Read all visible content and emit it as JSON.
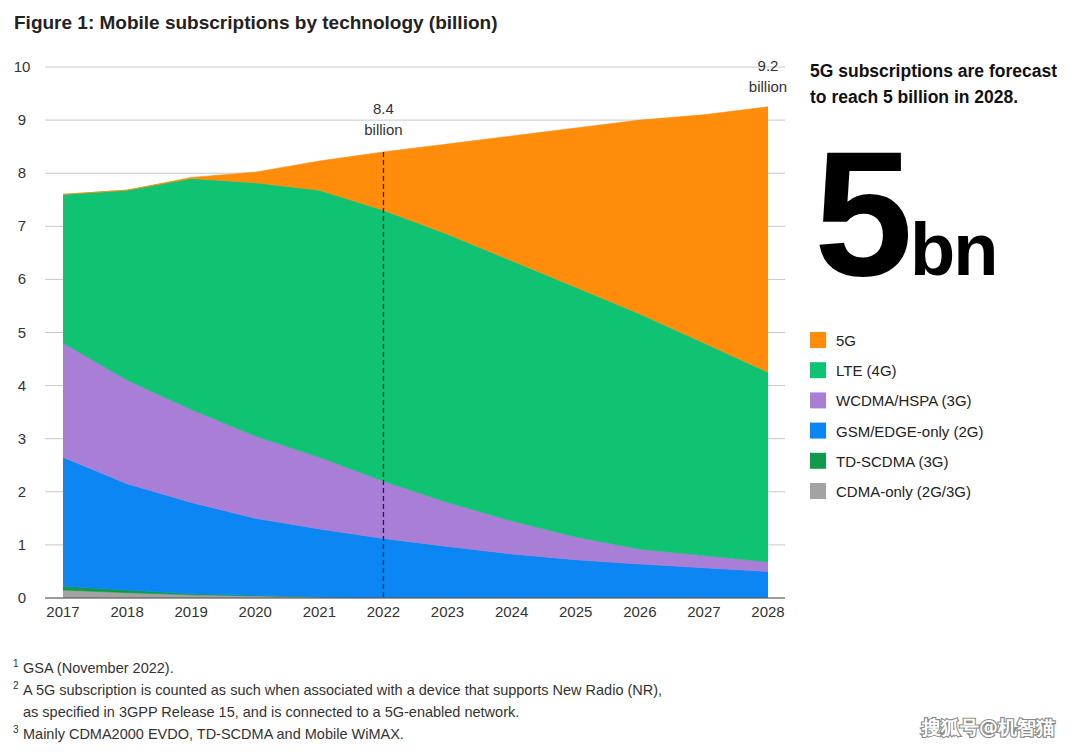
{
  "chart_data": {
    "type": "area",
    "stacked": true,
    "title": "Figure 1: Mobile subscriptions by technology (billion)",
    "x": [
      2017,
      2018,
      2019,
      2020,
      2021,
      2022,
      2023,
      2024,
      2025,
      2026,
      2027,
      2028
    ],
    "xlim": [
      2017,
      2028
    ],
    "xticks": [
      2017,
      2018,
      2019,
      2020,
      2021,
      2022,
      2023,
      2024,
      2025,
      2026,
      2027,
      2028
    ],
    "ylim": [
      0,
      10
    ],
    "yticks": [
      0,
      1,
      2,
      3,
      4,
      5,
      6,
      7,
      8,
      9,
      10
    ],
    "grid": true,
    "legend": "right",
    "series": [
      {
        "name": "5G",
        "color": "#ff8c0a",
        "values": [
          0,
          0,
          0.02,
          0.2,
          0.55,
          1.1,
          1.7,
          2.35,
          3.0,
          3.65,
          4.3,
          5.0
        ]
      },
      {
        "name": "LTE (4G)",
        "color": "#10c373",
        "values": [
          2.8,
          3.58,
          4.35,
          4.77,
          5.03,
          5.1,
          5.05,
          4.9,
          4.7,
          4.43,
          4.0,
          3.57
        ]
      },
      {
        "name": "WCDMA/HSPA (3G)",
        "color": "#a97ed6",
        "values": [
          2.15,
          1.95,
          1.75,
          1.55,
          1.35,
          1.08,
          0.83,
          0.62,
          0.43,
          0.28,
          0.23,
          0.18
        ]
      },
      {
        "name": "GSM/EDGE-only (2G)",
        "color": "#0b86f2",
        "values": [
          2.43,
          2.0,
          1.72,
          1.45,
          1.28,
          1.12,
          0.97,
          0.83,
          0.72,
          0.64,
          0.57,
          0.5
        ]
      },
      {
        "name": "TD-SCDMA (3G)",
        "color": "#109a4e",
        "values": [
          0.07,
          0.05,
          0.02,
          0.01,
          0,
          0,
          0,
          0,
          0,
          0,
          0,
          0
        ]
      },
      {
        "name": "CDMA-only (2G/3G)",
        "color": "#a3a3a3",
        "values": [
          0.15,
          0.1,
          0.06,
          0.04,
          0.02,
          0,
          0,
          0,
          0,
          0,
          0,
          0
        ]
      }
    ],
    "annotations": [
      {
        "x": 2022,
        "value": 8.4,
        "unit": "billion",
        "line_style": "dashed"
      },
      {
        "x": 2028,
        "value": 9.2,
        "unit": "billion"
      }
    ],
    "headline": [
      "5G subscriptions are forecast",
      "to reach 5 billion in 2028."
    ],
    "big_number": {
      "value": 5,
      "unit": "bn"
    },
    "notes": [
      {
        "marker": 1,
        "lines": [
          "GSA (November 2022)."
        ]
      },
      {
        "marker": 2,
        "lines": [
          "A 5G subscription is counted as such when associated with a device that supports New Radio (NR),",
          "as specified in 3GPP Release 15, and is connected to a 5G-enabled network."
        ]
      },
      {
        "marker": 3,
        "lines": [
          "Mainly CDMA2000 EVDO, TD-SCDMA and Mobile WiMAX."
        ]
      }
    ],
    "watermark": "搜狐号@机智猫"
  }
}
